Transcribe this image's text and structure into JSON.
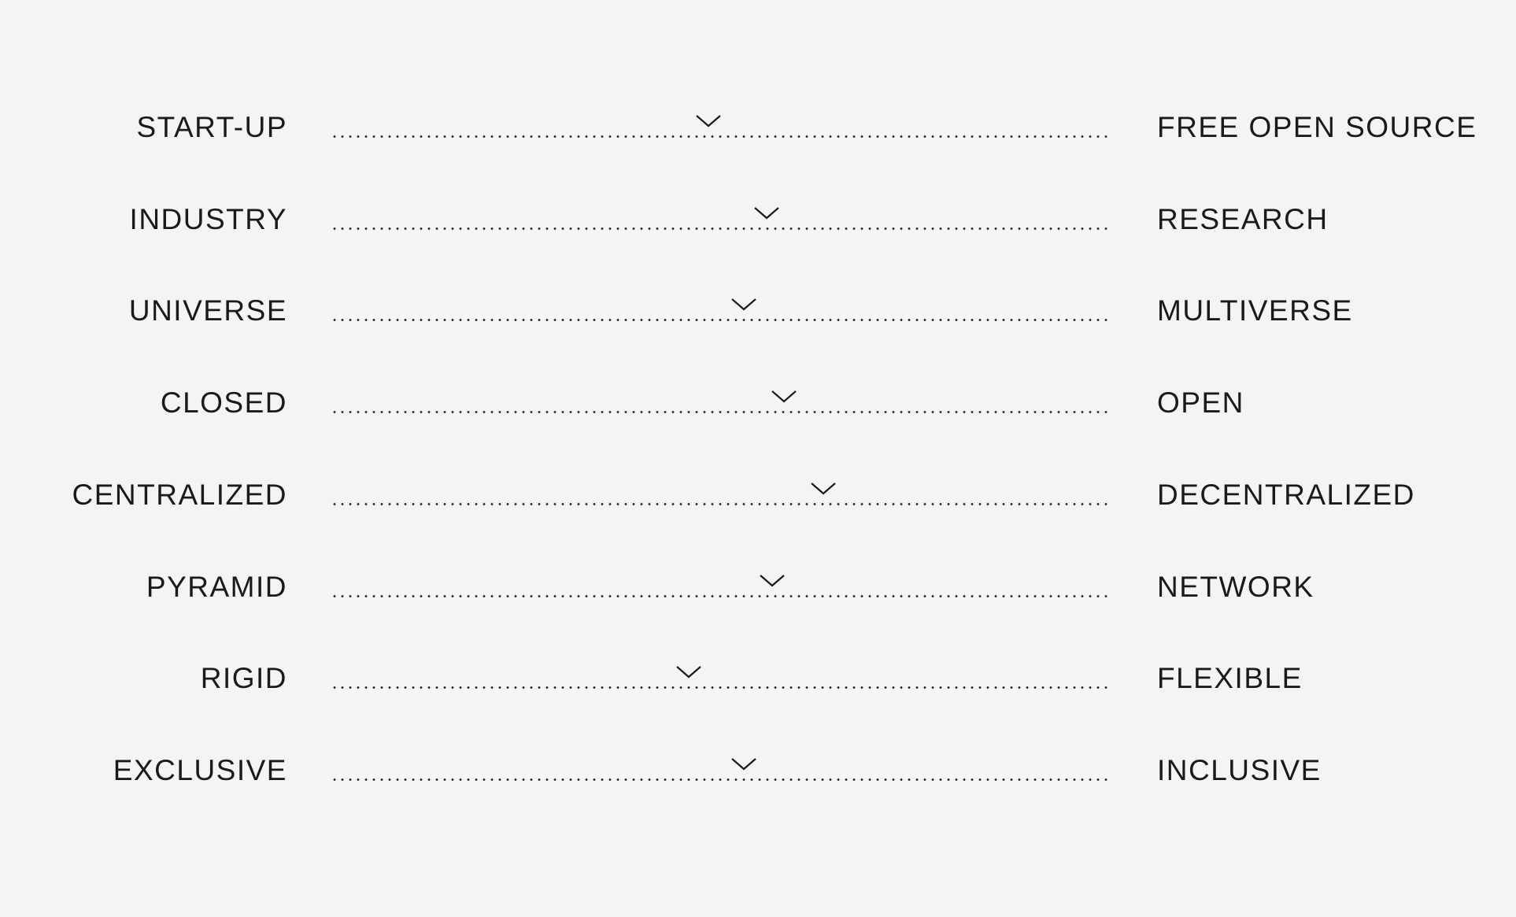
{
  "scales": [
    {
      "left": "START-UP",
      "right": "FREE OPEN SOURCE",
      "value": 0.485,
      "marker_icon": "chevron-down-icon"
    },
    {
      "left": "INDUSTRY",
      "right": "RESEARCH",
      "value": 0.56,
      "marker_icon": "chevron-down-icon"
    },
    {
      "left": "UNIVERSE",
      "right": "MULTIVERSE",
      "value": 0.53,
      "marker_icon": "chevron-down-icon"
    },
    {
      "left": "CLOSED",
      "right": "OPEN",
      "value": 0.582,
      "marker_icon": "chevron-down-icon"
    },
    {
      "left": "CENTRALIZED",
      "right": "DECENTRALIZED",
      "value": 0.632,
      "marker_icon": "chevron-down-icon"
    },
    {
      "left": "PYRAMID",
      "right": "NETWORK",
      "value": 0.567,
      "marker_icon": "chevron-down-icon"
    },
    {
      "left": "RIGID",
      "right": "FLEXIBLE",
      "value": 0.46,
      "marker_icon": "chevron-down-icon"
    },
    {
      "left": "EXCLUSIVE",
      "right": "INCLUSIVE",
      "value": 0.53,
      "marker_icon": "chevron-down-icon"
    }
  ],
  "colors": {
    "background": "#f4f4f4",
    "text": "#1a1a1a"
  }
}
